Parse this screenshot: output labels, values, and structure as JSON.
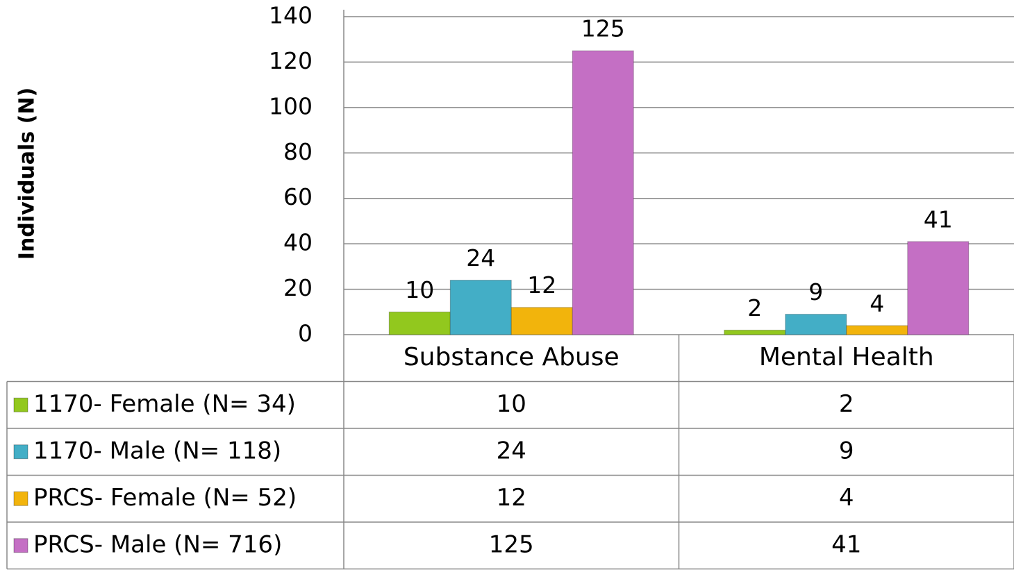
{
  "chart_data": {
    "type": "bar",
    "y_label": "Individuals (N)",
    "categories": [
      "Substance Abuse",
      "Mental Health"
    ],
    "series": [
      {
        "name": "1170- Female (N= 34)",
        "color": "#92c81e",
        "values": [
          10,
          2
        ]
      },
      {
        "name": "1170- Male (N= 118)",
        "color": "#43aec6",
        "values": [
          24,
          9
        ]
      },
      {
        "name": "PRCS- Female (N= 52)",
        "color": "#f2b40c",
        "values": [
          12,
          4
        ]
      },
      {
        "name": "PRCS- Male (N= 716)",
        "color": "#c46fc4",
        "values": [
          125,
          41
        ]
      }
    ],
    "ylim": [
      0,
      140
    ],
    "yticks": [
      0,
      20,
      40,
      60,
      80,
      100,
      120,
      140
    ],
    "grid": true,
    "data_table": true,
    "data_labels": true
  }
}
